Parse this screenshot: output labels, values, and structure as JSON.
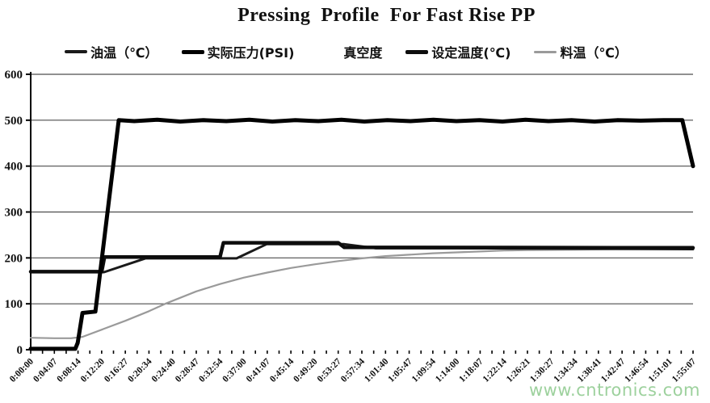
{
  "page": {
    "watermark": "www.cntronics.com"
  },
  "chart": {
    "title": "Pressing  Profile  For Fast Rise PP",
    "legend": [
      {
        "label": "油温（℃）",
        "color": "#1a1a1a",
        "thickness": 4
      },
      {
        "label": "实际压力(PSI)",
        "color": "#000000",
        "thickness": 5
      },
      {
        "label": "真空度",
        "color": "#ffffff",
        "thickness": 4
      },
      {
        "label": "设定温度(℃)",
        "color": "#0d0d0d",
        "thickness": 5
      },
      {
        "label": "料温（℃）",
        "color": "#9a9a9a",
        "thickness": 3
      }
    ]
  },
  "chart_data": {
    "type": "line",
    "title": "Pressing  Profile  For Fast Rise PP",
    "xlabel": "",
    "ylabel": "",
    "grid": "horizontal",
    "legend_position": "top",
    "ylim": [
      0,
      600
    ],
    "y_ticks": [
      0,
      100,
      200,
      300,
      400,
      500,
      600
    ],
    "x_tick_labels": [
      "0:00:00",
      "0:04:07",
      "0:08:14",
      "0:12:20",
      "0:16:27",
      "0:20:34",
      "0:24:40",
      "0:28:47",
      "0:32:54",
      "0:37:00",
      "0:41:07",
      "0:45:14",
      "0:49:20",
      "0:53:27",
      "0:57:34",
      "1:01:40",
      "1:05:47",
      "1:09:54",
      "1:14:00",
      "1:18:07",
      "1:22:14",
      "1:26:21",
      "1:30:27",
      "1:34:34",
      "1:38:41",
      "1:42:47",
      "1:46:54",
      "1:51:01",
      "1:55:07"
    ],
    "series": [
      {
        "name": "油温（℃）",
        "color": "#1a1a1a",
        "width": 3,
        "points": [
          [
            "0:00:00",
            169
          ],
          [
            "0:12:45",
            169
          ],
          [
            "0:19:56",
            199
          ],
          [
            "0:35:47",
            199
          ],
          [
            "0:41:00",
            230
          ],
          [
            "0:54:30",
            230
          ],
          [
            "1:00:00",
            221
          ],
          [
            "1:14:00",
            221
          ],
          [
            "1:55:07",
            219
          ]
        ]
      },
      {
        "name": "实际压力(PSI)",
        "color": "#000000",
        "width": 5,
        "points": [
          [
            "0:00:00",
            2
          ],
          [
            "0:07:45",
            2
          ],
          [
            "0:08:10",
            15
          ],
          [
            "0:09:00",
            80
          ],
          [
            "0:11:15",
            83
          ],
          [
            "0:15:18",
            500
          ],
          [
            "0:18:00",
            498
          ],
          [
            "0:22:00",
            501
          ],
          [
            "0:26:00",
            497
          ],
          [
            "0:30:00",
            500
          ],
          [
            "0:34:00",
            498
          ],
          [
            "0:38:00",
            501
          ],
          [
            "0:42:00",
            497
          ],
          [
            "0:46:00",
            500
          ],
          [
            "0:50:00",
            498
          ],
          [
            "0:54:00",
            501
          ],
          [
            "0:58:00",
            497
          ],
          [
            "1:02:00",
            500
          ],
          [
            "1:06:00",
            498
          ],
          [
            "1:10:00",
            501
          ],
          [
            "1:14:00",
            498
          ],
          [
            "1:18:00",
            500
          ],
          [
            "1:22:00",
            497
          ],
          [
            "1:26:00",
            501
          ],
          [
            "1:30:00",
            498
          ],
          [
            "1:34:00",
            500
          ],
          [
            "1:38:00",
            497
          ],
          [
            "1:42:00",
            500
          ],
          [
            "1:46:00",
            499
          ],
          [
            "1:50:00",
            500
          ],
          [
            "1:53:15",
            500
          ],
          [
            "1:55:07",
            400
          ]
        ]
      },
      {
        "name": "真空度",
        "color": "#ffffff",
        "width": 2,
        "points": [
          [
            "0:00:00",
            0
          ],
          [
            "1:55:07",
            0
          ]
        ]
      },
      {
        "name": "设定温度(℃)",
        "color": "#0d0d0d",
        "width": 4.5,
        "points": [
          [
            "0:00:00",
            170
          ],
          [
            "0:12:20",
            170
          ],
          [
            "0:12:50",
            202
          ],
          [
            "0:32:54",
            202
          ],
          [
            "0:33:30",
            233
          ],
          [
            "0:53:27",
            233
          ],
          [
            "0:54:30",
            223
          ],
          [
            "1:55:07",
            222
          ]
        ]
      },
      {
        "name": "料温（℃）",
        "color": "#9a9a9a",
        "width": 2.2,
        "points": [
          [
            "0:00:00",
            26
          ],
          [
            "0:04:07",
            25
          ],
          [
            "0:07:00",
            25
          ],
          [
            "0:09:00",
            28
          ],
          [
            "0:12:38",
            45
          ],
          [
            "0:16:27",
            63
          ],
          [
            "0:20:34",
            84
          ],
          [
            "0:23:22",
            100
          ],
          [
            "0:28:47",
            127
          ],
          [
            "0:32:54",
            143
          ],
          [
            "0:37:00",
            157
          ],
          [
            "0:41:07",
            168
          ],
          [
            "0:45:14",
            178
          ],
          [
            "0:49:20",
            186
          ],
          [
            "0:53:27",
            193
          ],
          [
            "0:57:34",
            199
          ],
          [
            "1:01:40",
            204
          ],
          [
            "1:05:47",
            207
          ],
          [
            "1:09:54",
            210
          ],
          [
            "1:14:00",
            212
          ],
          [
            "1:18:07",
            214
          ],
          [
            "1:22:14",
            216
          ],
          [
            "1:26:21",
            217
          ],
          [
            "1:34:34",
            218
          ],
          [
            "1:42:47",
            219
          ],
          [
            "1:55:07",
            220
          ]
        ]
      }
    ]
  }
}
